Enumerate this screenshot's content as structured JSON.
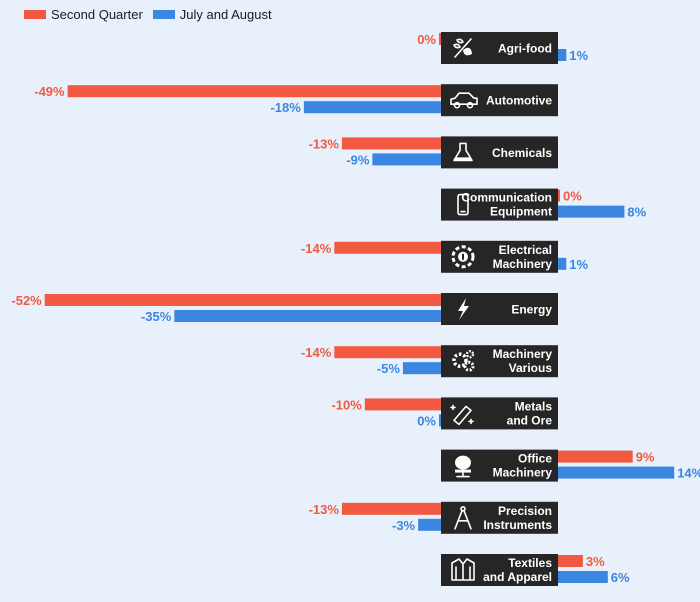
{
  "legend": {
    "series_a": "Second Quarter",
    "series_b": "July and August"
  },
  "colors": {
    "series_a": "#f15a40",
    "series_b": "#3a86e0",
    "label_box": "#262626",
    "label_text": "#ffffff"
  },
  "chart_data": {
    "type": "bar",
    "orientation": "horizontal",
    "categories": [
      "Agri-food",
      "Automotive",
      "Chemicals",
      "Communication Equipment",
      "Electrical Machinery",
      "Energy",
      "Machinery Various",
      "Metals and Ore",
      "Office Machinery",
      "Precision Instruments",
      "Textiles and Apparel"
    ],
    "icons": [
      "wheat-leaf-icon",
      "car-icon",
      "flask-icon",
      "phone-icon",
      "plug-icon",
      "lightning-icon",
      "gears-icon",
      "ingot-icon",
      "chair-icon",
      "compass-icon",
      "jacket-icon"
    ],
    "series": [
      {
        "name": "Second Quarter",
        "values": [
          0,
          -49,
          -13,
          0,
          -14,
          -52,
          -14,
          -10,
          9,
          -13,
          3
        ],
        "labels": [
          "0%",
          "-49%",
          "-13%",
          "0%",
          "-14%",
          "-52%",
          "-14%",
          "-10%",
          "9%",
          "-13%",
          "3%"
        ]
      },
      {
        "name": "July and August",
        "values": [
          1,
          -18,
          -9,
          8,
          1,
          -35,
          -5,
          0,
          14,
          -3,
          6
        ],
        "labels": [
          "1%",
          "-18%",
          "-9%",
          "8%",
          "1%",
          "-35%",
          "-5%",
          "0%",
          "14%",
          "-3%",
          "6%"
        ]
      }
    ],
    "unit": "%"
  }
}
